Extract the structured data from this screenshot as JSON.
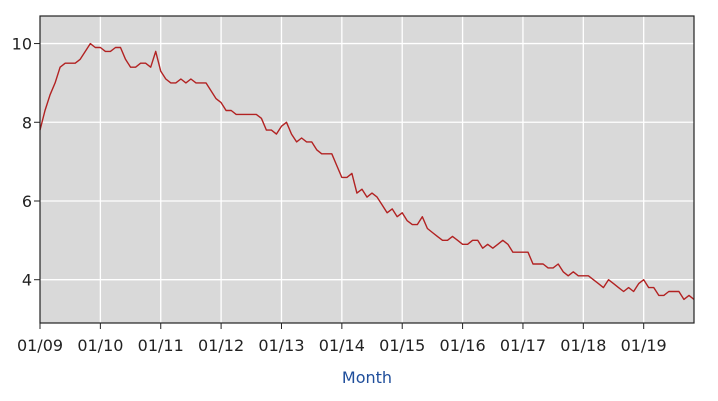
{
  "chart_data": {
    "type": "line",
    "title": "",
    "xlabel": "Month",
    "ylabel": "",
    "xlim": [
      "2009-01",
      "2019-11"
    ],
    "ylim": [
      2.9,
      10.7
    ],
    "grid": true,
    "x_tick_labels": [
      "01/09",
      "01/10",
      "01/11",
      "01/12",
      "01/13",
      "01/14",
      "01/15",
      "01/16",
      "01/17",
      "01/18",
      "01/19"
    ],
    "x_tick_dates": [
      "2009-01",
      "2010-01",
      "2011-01",
      "2012-01",
      "2013-01",
      "2014-01",
      "2015-01",
      "2016-01",
      "2017-01",
      "2018-01",
      "2019-01"
    ],
    "y_tick_labels": [
      "4",
      "6",
      "8",
      "10"
    ],
    "y_tick_values": [
      4,
      6,
      8,
      10
    ],
    "series": [
      {
        "color": "#b22222",
        "x": [
          "2009-01",
          "2009-02",
          "2009-03",
          "2009-04",
          "2009-05",
          "2009-06",
          "2009-07",
          "2009-08",
          "2009-09",
          "2009-10",
          "2009-11",
          "2009-12",
          "2010-01",
          "2010-02",
          "2010-03",
          "2010-04",
          "2010-05",
          "2010-06",
          "2010-07",
          "2010-08",
          "2010-09",
          "2010-10",
          "2010-11",
          "2010-12",
          "2011-01",
          "2011-02",
          "2011-03",
          "2011-04",
          "2011-05",
          "2011-06",
          "2011-07",
          "2011-08",
          "2011-09",
          "2011-10",
          "2011-11",
          "2011-12",
          "2012-01",
          "2012-02",
          "2012-03",
          "2012-04",
          "2012-05",
          "2012-06",
          "2012-07",
          "2012-08",
          "2012-09",
          "2012-10",
          "2012-11",
          "2012-12",
          "2013-01",
          "2013-02",
          "2013-03",
          "2013-04",
          "2013-05",
          "2013-06",
          "2013-07",
          "2013-08",
          "2013-09",
          "2013-10",
          "2013-11",
          "2013-12",
          "2014-01",
          "2014-02",
          "2014-03",
          "2014-04",
          "2014-05",
          "2014-06",
          "2014-07",
          "2014-08",
          "2014-09",
          "2014-10",
          "2014-11",
          "2014-12",
          "2015-01",
          "2015-02",
          "2015-03",
          "2015-04",
          "2015-05",
          "2015-06",
          "2015-07",
          "2015-08",
          "2015-09",
          "2015-10",
          "2015-11",
          "2015-12",
          "2016-01",
          "2016-02",
          "2016-03",
          "2016-04",
          "2016-05",
          "2016-06",
          "2016-07",
          "2016-08",
          "2016-09",
          "2016-10",
          "2016-11",
          "2016-12",
          "2017-01",
          "2017-02",
          "2017-03",
          "2017-04",
          "2017-05",
          "2017-06",
          "2017-07",
          "2017-08",
          "2017-09",
          "2017-10",
          "2017-11",
          "2017-12",
          "2018-01",
          "2018-02",
          "2018-03",
          "2018-04",
          "2018-05",
          "2018-06",
          "2018-07",
          "2018-08",
          "2018-09",
          "2018-10",
          "2018-11",
          "2018-12",
          "2019-01",
          "2019-02",
          "2019-03",
          "2019-04",
          "2019-05",
          "2019-06",
          "2019-07",
          "2019-08",
          "2019-09",
          "2019-10",
          "2019-11"
        ],
        "values": [
          7.8,
          8.3,
          8.7,
          9.0,
          9.4,
          9.5,
          9.5,
          9.5,
          9.6,
          9.8,
          10.0,
          9.9,
          9.9,
          9.8,
          9.8,
          9.9,
          9.9,
          9.6,
          9.4,
          9.4,
          9.5,
          9.5,
          9.4,
          9.8,
          9.3,
          9.1,
          9.0,
          9.0,
          9.1,
          9.0,
          9.1,
          9.0,
          9.0,
          9.0,
          8.8,
          8.6,
          8.5,
          8.3,
          8.3,
          8.2,
          8.2,
          8.2,
          8.2,
          8.2,
          8.1,
          7.8,
          7.8,
          7.7,
          7.9,
          8.0,
          7.7,
          7.5,
          7.6,
          7.5,
          7.5,
          7.3,
          7.2,
          7.2,
          7.2,
          6.9,
          6.6,
          6.6,
          6.7,
          6.2,
          6.3,
          6.1,
          6.2,
          6.1,
          5.9,
          5.7,
          5.8,
          5.6,
          5.7,
          5.5,
          5.4,
          5.4,
          5.6,
          5.3,
          5.2,
          5.1,
          5.0,
          5.0,
          5.1,
          5.0,
          4.9,
          4.9,
          5.0,
          5.0,
          4.8,
          4.9,
          4.8,
          4.9,
          5.0,
          4.9,
          4.7,
          4.7,
          4.7,
          4.7,
          4.4,
          4.4,
          4.4,
          4.3,
          4.3,
          4.4,
          4.2,
          4.1,
          4.2,
          4.1,
          4.1,
          4.1,
          4.0,
          3.9,
          3.8,
          4.0,
          3.9,
          3.8,
          3.7,
          3.8,
          3.7,
          3.9,
          4.0,
          3.8,
          3.8,
          3.6,
          3.6,
          3.7,
          3.7,
          3.7,
          3.5,
          3.6,
          3.5
        ]
      }
    ]
  }
}
